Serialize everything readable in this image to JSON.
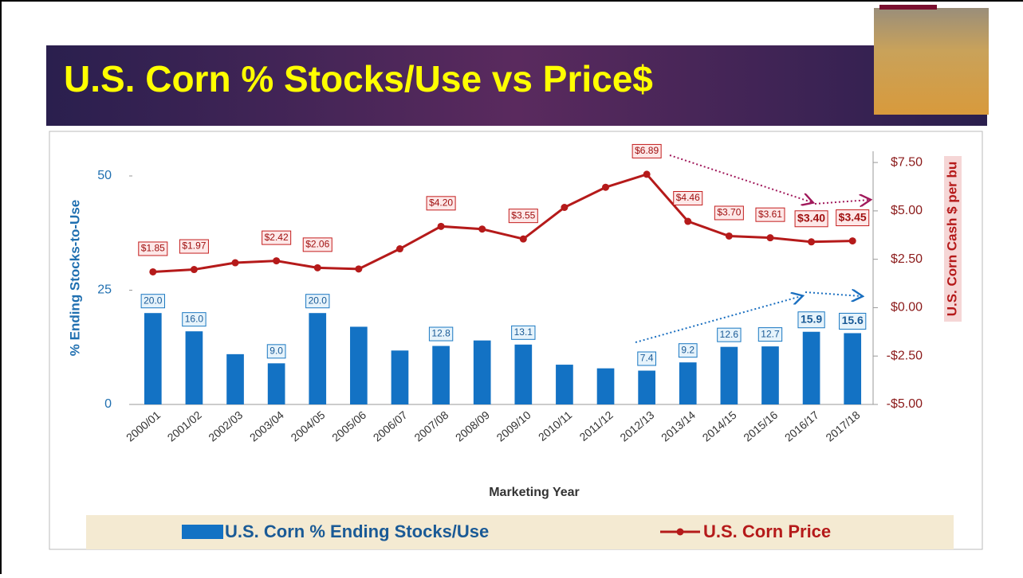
{
  "chart_data": {
    "type": "bar-line",
    "title": "U.S. Corn % Stocks/Use vs Price$",
    "x_label": "Marketing Year",
    "y_label": "% Ending Stocks-to-Use",
    "y2_label": "U.S. Corn Cash $ per bu",
    "categories": [
      "2000/01",
      "2001/02",
      "2002/03",
      "2003/04",
      "2004/05",
      "2005/06",
      "2006/07",
      "2007/08",
      "2008/09",
      "2009/10",
      "2010/11",
      "2011/12",
      "2012/13",
      "2013/14",
      "2014/15",
      "2015/16",
      "2016/17",
      "2017/18"
    ],
    "series": [
      {
        "name": "U.S. Corn % Ending Stocks/Use",
        "type": "bar",
        "color": "#1372c4",
        "values": [
          20.0,
          16.0,
          11.0,
          9.0,
          20.0,
          17.0,
          11.8,
          12.8,
          14.0,
          13.1,
          8.7,
          7.9,
          7.4,
          9.2,
          12.6,
          12.7,
          15.9,
          15.6
        ],
        "value_labels": [
          "20.0",
          "16.0",
          null,
          "9.0",
          "20.0",
          null,
          null,
          "12.8",
          null,
          "13.1",
          null,
          null,
          "7.4",
          "9.2",
          "12.6",
          "12.7",
          "15.9",
          "15.6"
        ]
      },
      {
        "name": "U.S. Corn Price",
        "type": "line",
        "axis": "y2",
        "color": "#b51a1a",
        "values": [
          1.85,
          1.97,
          2.32,
          2.42,
          2.06,
          2.0,
          3.04,
          4.2,
          4.06,
          3.55,
          5.18,
          6.22,
          6.89,
          4.46,
          3.7,
          3.61,
          3.4,
          3.45
        ],
        "value_labels": [
          "$1.85",
          "$1.97",
          null,
          "$2.42",
          "$2.06",
          null,
          null,
          "$4.20",
          null,
          "$3.55",
          null,
          null,
          "$6.89",
          "$4.46",
          "$3.70",
          "$3.61",
          "$3.40",
          "$3.45"
        ]
      }
    ],
    "ylim": [
      0,
      55.4
    ],
    "yticks": [
      0,
      25,
      50
    ],
    "y2lim": [
      -5,
      8.08
    ],
    "y2ticks": [
      {
        "value": -5,
        "label": "-$5.00"
      },
      {
        "value": -2.5,
        "label": "-$2.50"
      },
      {
        "value": 0,
        "label": "$0.00"
      },
      {
        "value": 2.5,
        "label": "$2.50"
      },
      {
        "value": 5,
        "label": "$5.00"
      },
      {
        "value": 7.5,
        "label": "$7.50"
      }
    ]
  }
}
